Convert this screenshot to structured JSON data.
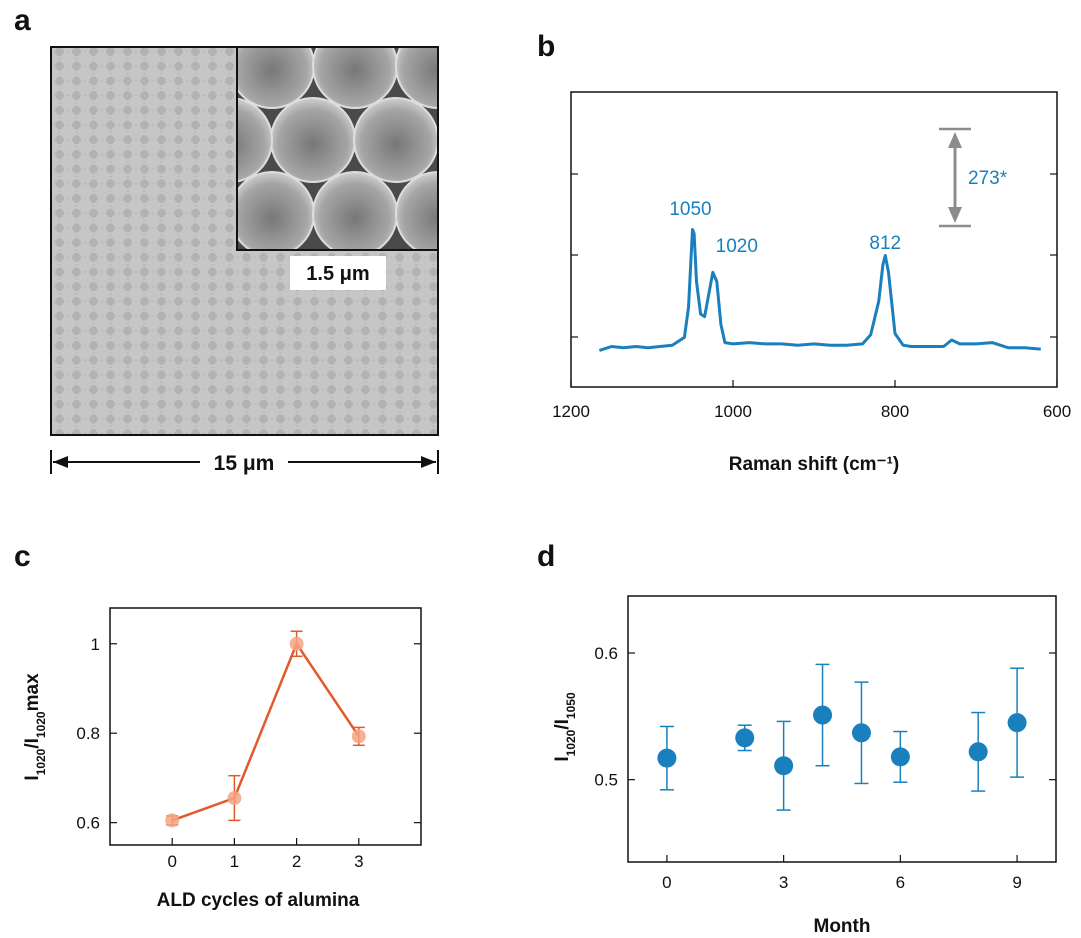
{
  "panels": {
    "a": "a",
    "b": "b",
    "c": "c",
    "d": "d"
  },
  "panel_a": {
    "inset_scale_label": "1.5 μm",
    "scale_bar_label": "15 μm"
  },
  "colors": {
    "raman": "#1a80bd",
    "ald": "#e05a2b",
    "ald_marker": "#f4a582",
    "month": "#1a80bd",
    "annotation": "#8c8c8c"
  },
  "chart_data": [
    {
      "panel": "b",
      "type": "line",
      "xlabel": "Raman shift (cm⁻¹)",
      "ylabel": "",
      "xlim": [
        1200,
        600
      ],
      "x_ticks": [
        "1200",
        "1000",
        "800",
        "600"
      ],
      "peaks": [
        {
          "x": 1050,
          "label": "1050"
        },
        {
          "x": 1020,
          "label": "1020"
        },
        {
          "x": 812,
          "label": "812"
        }
      ],
      "scale_bar_label": "273*",
      "spectrum": {
        "x": [
          1165,
          1150,
          1135,
          1120,
          1105,
          1090,
          1075,
          1060,
          1055,
          1050,
          1048,
          1045,
          1040,
          1035,
          1030,
          1025,
          1020,
          1015,
          1010,
          1000,
          980,
          960,
          940,
          920,
          900,
          880,
          860,
          840,
          830,
          820,
          815,
          812,
          808,
          800,
          790,
          780,
          760,
          740,
          730,
          720,
          700,
          680,
          660,
          640,
          620
        ],
        "y": [
          0.02,
          0.05,
          0.04,
          0.05,
          0.04,
          0.05,
          0.06,
          0.12,
          0.35,
          0.95,
          0.92,
          0.55,
          0.3,
          0.28,
          0.45,
          0.62,
          0.55,
          0.22,
          0.08,
          0.07,
          0.08,
          0.07,
          0.07,
          0.06,
          0.07,
          0.06,
          0.06,
          0.07,
          0.14,
          0.4,
          0.68,
          0.75,
          0.62,
          0.15,
          0.06,
          0.05,
          0.05,
          0.05,
          0.1,
          0.07,
          0.07,
          0.08,
          0.04,
          0.04,
          0.03
        ]
      }
    },
    {
      "panel": "c",
      "type": "line",
      "xlabel": "ALD cycles of alumina",
      "ylabel": "I1020/I1020max",
      "xlim": [
        -1,
        4
      ],
      "ylim": [
        0.55,
        1.08
      ],
      "x_ticks": [
        "0",
        "1",
        "2",
        "3"
      ],
      "y_ticks": [
        "0.6",
        "0.8",
        "1"
      ],
      "x": [
        0,
        1,
        2,
        3
      ],
      "y": [
        0.605,
        0.655,
        1.0,
        0.793
      ],
      "yerr": [
        0.01,
        0.05,
        0.028,
        0.02
      ]
    },
    {
      "panel": "d",
      "type": "scatter",
      "xlabel": "Month",
      "ylabel": "I1020/I1050",
      "xlim": [
        -1,
        10
      ],
      "ylim": [
        0.435,
        0.645
      ],
      "x_ticks": [
        "0",
        "3",
        "6",
        "9"
      ],
      "y_ticks": [
        "0.5",
        "0.6"
      ],
      "x": [
        0,
        2,
        3,
        4,
        5,
        6,
        8,
        9
      ],
      "y": [
        0.517,
        0.533,
        0.511,
        0.551,
        0.537,
        0.518,
        0.522,
        0.545
      ],
      "yerr": [
        0.025,
        0.01,
        0.035,
        0.04,
        0.04,
        0.02,
        0.031,
        0.043
      ]
    }
  ]
}
